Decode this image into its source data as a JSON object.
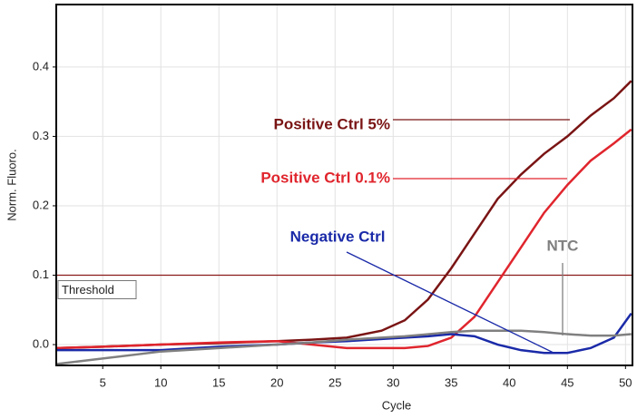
{
  "chart_data": {
    "type": "line",
    "x_label": "Cycle",
    "y_label": "Norm. Fluoro.",
    "x": [
      1,
      5,
      10,
      15,
      20,
      23,
      26,
      29,
      31,
      33,
      35,
      37,
      39,
      41,
      43,
      45,
      47,
      49,
      50.5
    ],
    "series": [
      {
        "name": "Positive Ctrl 5%",
        "color": "#7a1414",
        "values": [
          -0.005,
          -0.003,
          0,
          0.002,
          0.005,
          0.007,
          0.01,
          0.02,
          0.035,
          0.065,
          0.11,
          0.16,
          0.21,
          0.245,
          0.275,
          0.3,
          0.33,
          0.355,
          0.38
        ]
      },
      {
        "name": "Positive Ctrl 0.1%",
        "color": "#e0252d",
        "values": [
          -0.005,
          -0.003,
          0,
          0.003,
          0.005,
          0,
          -0.005,
          -0.005,
          -0.005,
          -0.002,
          0.01,
          0.04,
          0.09,
          0.14,
          0.19,
          0.23,
          0.265,
          0.29,
          0.31
        ]
      },
      {
        "name": "Negative Ctrl",
        "color": "#1a2aa8",
        "values": [
          -0.008,
          -0.008,
          -0.008,
          -0.003,
          0,
          0.003,
          0.005,
          0.008,
          0.01,
          0.012,
          0.015,
          0.012,
          0,
          -0.008,
          -0.012,
          -0.012,
          -0.005,
          0.01,
          0.045
        ]
      },
      {
        "name": "NTC",
        "color": "#808080",
        "values": [
          -0.028,
          -0.02,
          -0.01,
          -0.005,
          0,
          0.003,
          0.007,
          0.01,
          0.012,
          0.015,
          0.018,
          0.02,
          0.02,
          0.02,
          0.018,
          0.015,
          0.013,
          0.013,
          0.015
        ]
      }
    ],
    "threshold": {
      "value": 0.1,
      "label": "Threshold",
      "color": "#8b1a1a"
    },
    "xlim": [
      1,
      50.6
    ],
    "xticks": [
      5,
      10,
      15,
      20,
      25,
      30,
      35,
      40,
      45,
      50
    ],
    "ylim": [
      -0.03,
      0.49
    ],
    "yticks": [
      {
        "value": 0,
        "label": "0.0"
      },
      0.1,
      0.2,
      0.3,
      0.4
    ],
    "grid": true,
    "legend": "annotations"
  }
}
